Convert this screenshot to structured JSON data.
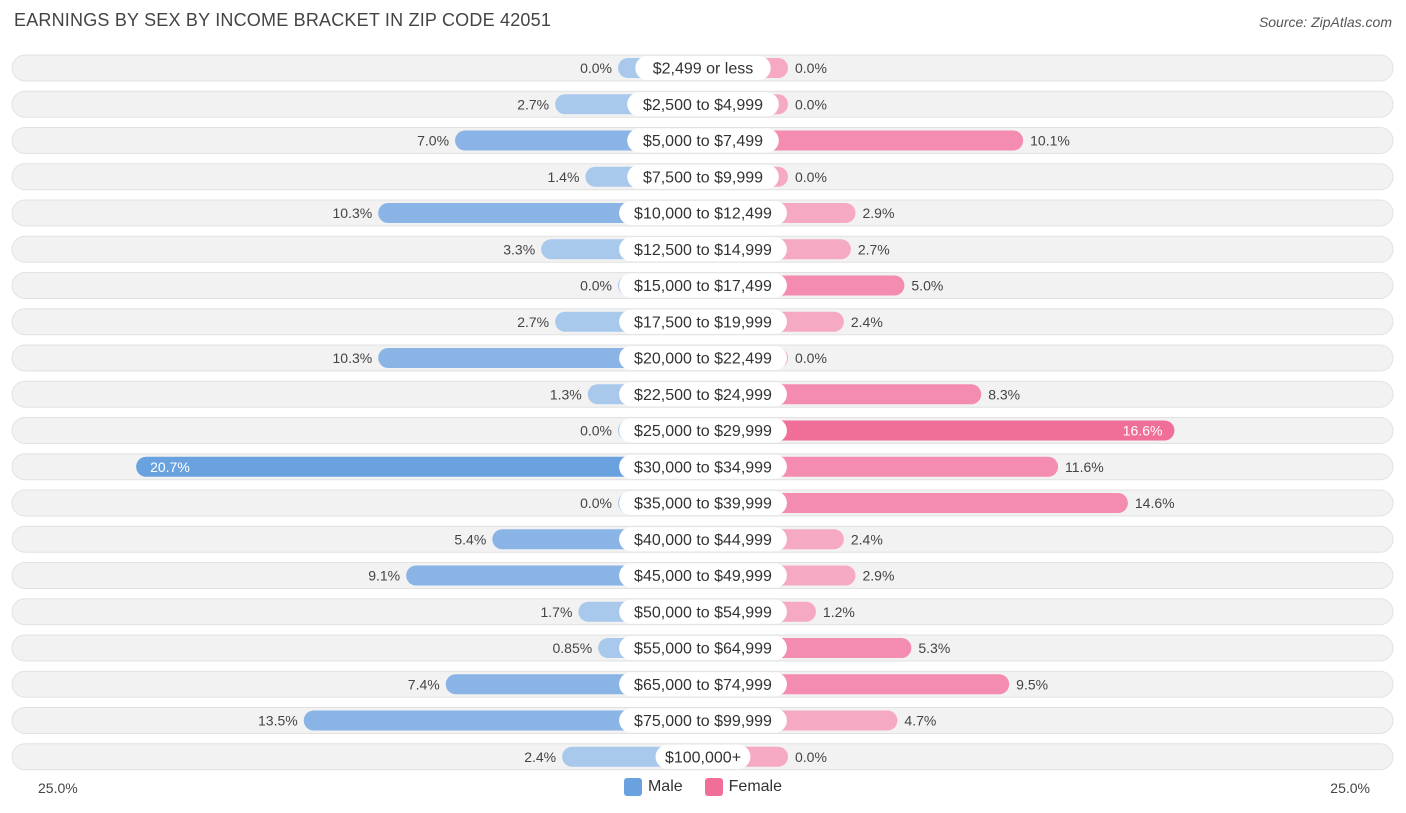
{
  "header": {
    "title": "EARNINGS BY SEX BY INCOME BRACKET IN ZIP CODE 42051",
    "source": "Source: ZipAtlas.com"
  },
  "axis": {
    "left_label": "25.0%",
    "right_label": "25.0%"
  },
  "legend": {
    "male": "Male",
    "female": "Female"
  },
  "colors": {
    "male_light": "#a8c8ec",
    "male_dark": "#6aa2df",
    "female_light": "#f6a9c3",
    "female_dark": "#f06f99",
    "row_bg": "#f2f2f2"
  },
  "chart_data": {
    "type": "bar",
    "title": "EARNINGS BY SEX BY INCOME BRACKET IN ZIP CODE 42051",
    "orientation": "horizontal-diverging",
    "xlim": [
      -25,
      25
    ],
    "categories": [
      "$2,499 or less",
      "$2,500 to $4,999",
      "$5,000 to $7,499",
      "$7,500 to $9,999",
      "$10,000 to $12,499",
      "$12,500 to $14,999",
      "$15,000 to $17,499",
      "$17,500 to $19,999",
      "$20,000 to $22,499",
      "$22,500 to $24,999",
      "$25,000 to $29,999",
      "$30,000 to $34,999",
      "$35,000 to $39,999",
      "$40,000 to $44,999",
      "$45,000 to $49,999",
      "$50,000 to $54,999",
      "$55,000 to $64,999",
      "$65,000 to $74,999",
      "$75,000 to $99,999",
      "$100,000+"
    ],
    "series": [
      {
        "name": "Male",
        "values": [
          0.0,
          2.7,
          7.0,
          1.4,
          10.3,
          3.3,
          0.0,
          2.7,
          10.3,
          1.3,
          0.0,
          20.7,
          0.0,
          5.4,
          9.1,
          1.7,
          0.85,
          7.4,
          13.5,
          2.4
        ],
        "labels": [
          "0.0%",
          "2.7%",
          "7.0%",
          "1.4%",
          "10.3%",
          "3.3%",
          "0.0%",
          "2.7%",
          "10.3%",
          "1.3%",
          "0.0%",
          "20.7%",
          "0.0%",
          "5.4%",
          "9.1%",
          "1.7%",
          "0.85%",
          "7.4%",
          "13.5%",
          "2.4%"
        ]
      },
      {
        "name": "Female",
        "values": [
          0.0,
          0.0,
          10.1,
          0.0,
          2.9,
          2.7,
          5.0,
          2.4,
          0.0,
          8.3,
          16.6,
          11.6,
          14.6,
          2.4,
          2.9,
          1.2,
          5.3,
          9.5,
          4.7,
          0.0
        ],
        "labels": [
          "0.0%",
          "0.0%",
          "10.1%",
          "0.0%",
          "2.9%",
          "2.7%",
          "5.0%",
          "2.4%",
          "0.0%",
          "8.3%",
          "16.6%",
          "11.6%",
          "14.6%",
          "2.4%",
          "2.9%",
          "1.2%",
          "5.3%",
          "9.5%",
          "4.7%",
          "0.0%"
        ]
      }
    ]
  }
}
